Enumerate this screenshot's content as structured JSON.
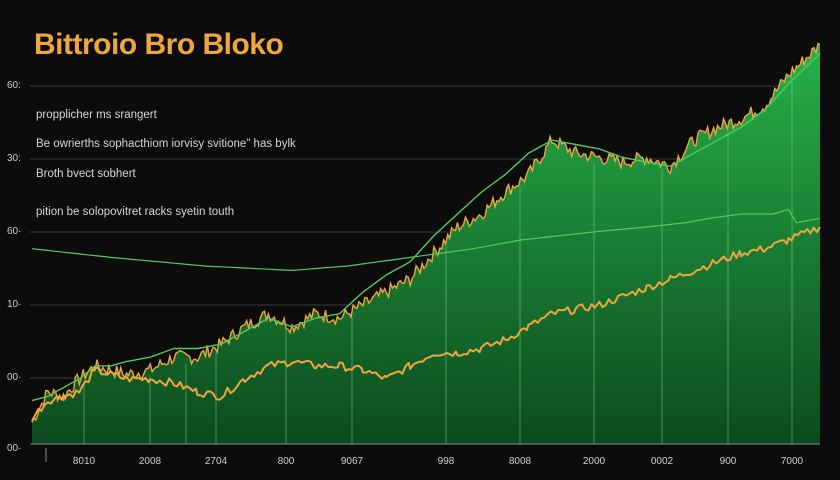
{
  "chart_data": {
    "type": "area",
    "title": "Bittroio Bro Bloko",
    "annotations": [
      "propplicher ms srangert",
      "Be owrierths sophacthiom iorvisy svitione\" has bylk",
      "Broth bvect sobhert",
      "pition be solopovitret racks syetin touth"
    ],
    "y_ticks": [
      "60:",
      "30:",
      "60·",
      "10·",
      "00·",
      "00·"
    ],
    "x_ticks": [
      "8010",
      "2008",
      "2704",
      "800",
      "9067",
      "998",
      "8008",
      "2000",
      "0002",
      "900",
      "7000"
    ],
    "xlabel": "",
    "ylabel": "",
    "grid": true,
    "colors": {
      "background": "#0b0c0b",
      "area_top": "#27b14a",
      "area_bottom": "#0c4a1e",
      "price_line": "#f0a63e",
      "trend_line": "#57c75d",
      "grid_line": "#3a3a3a",
      "title": "#f0a63e"
    },
    "series": [
      {
        "kind": "area",
        "x": [
          0,
          2,
          4,
          6,
          8,
          10,
          12,
          15,
          18,
          21,
          24,
          27,
          30,
          33,
          36,
          39,
          42,
          45,
          48,
          51,
          54,
          57,
          60,
          63,
          66,
          69,
          72,
          75,
          78,
          81,
          84,
          87,
          90,
          93,
          96,
          100
        ],
        "values": [
          5,
          12,
          11,
          15,
          18,
          17,
          16,
          17,
          20,
          20,
          23,
          27,
          30,
          27,
          30,
          29,
          32,
          35,
          38,
          44,
          50,
          53,
          58,
          62,
          70,
          67,
          66,
          65,
          66,
          64,
          70,
          73,
          75,
          78,
          85,
          92
        ]
      },
      {
        "kind": "line",
        "x": [
          0,
          2,
          4,
          6,
          8,
          10,
          12,
          15,
          18,
          21,
          24,
          27,
          30,
          33,
          36,
          39,
          42,
          45,
          48,
          51,
          54,
          57,
          60,
          63,
          66,
          69,
          72,
          75,
          78,
          81,
          84,
          87,
          90,
          93,
          96,
          100
        ],
        "values": [
          10,
          11,
          13,
          15,
          18,
          18,
          19,
          20,
          22,
          22,
          23,
          26,
          29,
          27,
          29,
          30,
          35,
          39,
          42,
          48,
          53,
          58,
          62,
          67,
          70,
          69,
          68,
          66,
          65,
          64,
          67,
          70,
          73,
          77,
          83,
          90
        ]
      },
      {
        "kind": "line",
        "x": [
          0,
          2,
          4,
          6,
          8,
          10,
          12,
          15,
          18,
          21,
          24,
          27,
          30,
          33,
          36,
          39,
          42,
          45,
          48,
          51,
          54,
          57,
          60,
          63,
          66,
          69,
          72,
          75,
          78,
          81,
          84,
          87,
          90,
          93,
          96,
          100
        ],
        "values": [
          6,
          10,
          11,
          12,
          17,
          16,
          15,
          15,
          14,
          12,
          11,
          15,
          18,
          19,
          18,
          18,
          17,
          15,
          18,
          21,
          21,
          22,
          24,
          27,
          30,
          31,
          32,
          34,
          36,
          38,
          40,
          42,
          44,
          45,
          47,
          50
        ]
      },
      {
        "kind": "line",
        "x": [
          0,
          10,
          22,
          33,
          40,
          48,
          56,
          62,
          67,
          72,
          78,
          83,
          86,
          90,
          94,
          96,
          97,
          100
        ],
        "values": [
          45,
          43,
          41,
          40,
          41,
          43,
          45,
          47,
          48,
          49,
          50,
          51,
          52,
          53,
          53,
          54,
          51,
          52
        ]
      }
    ]
  }
}
